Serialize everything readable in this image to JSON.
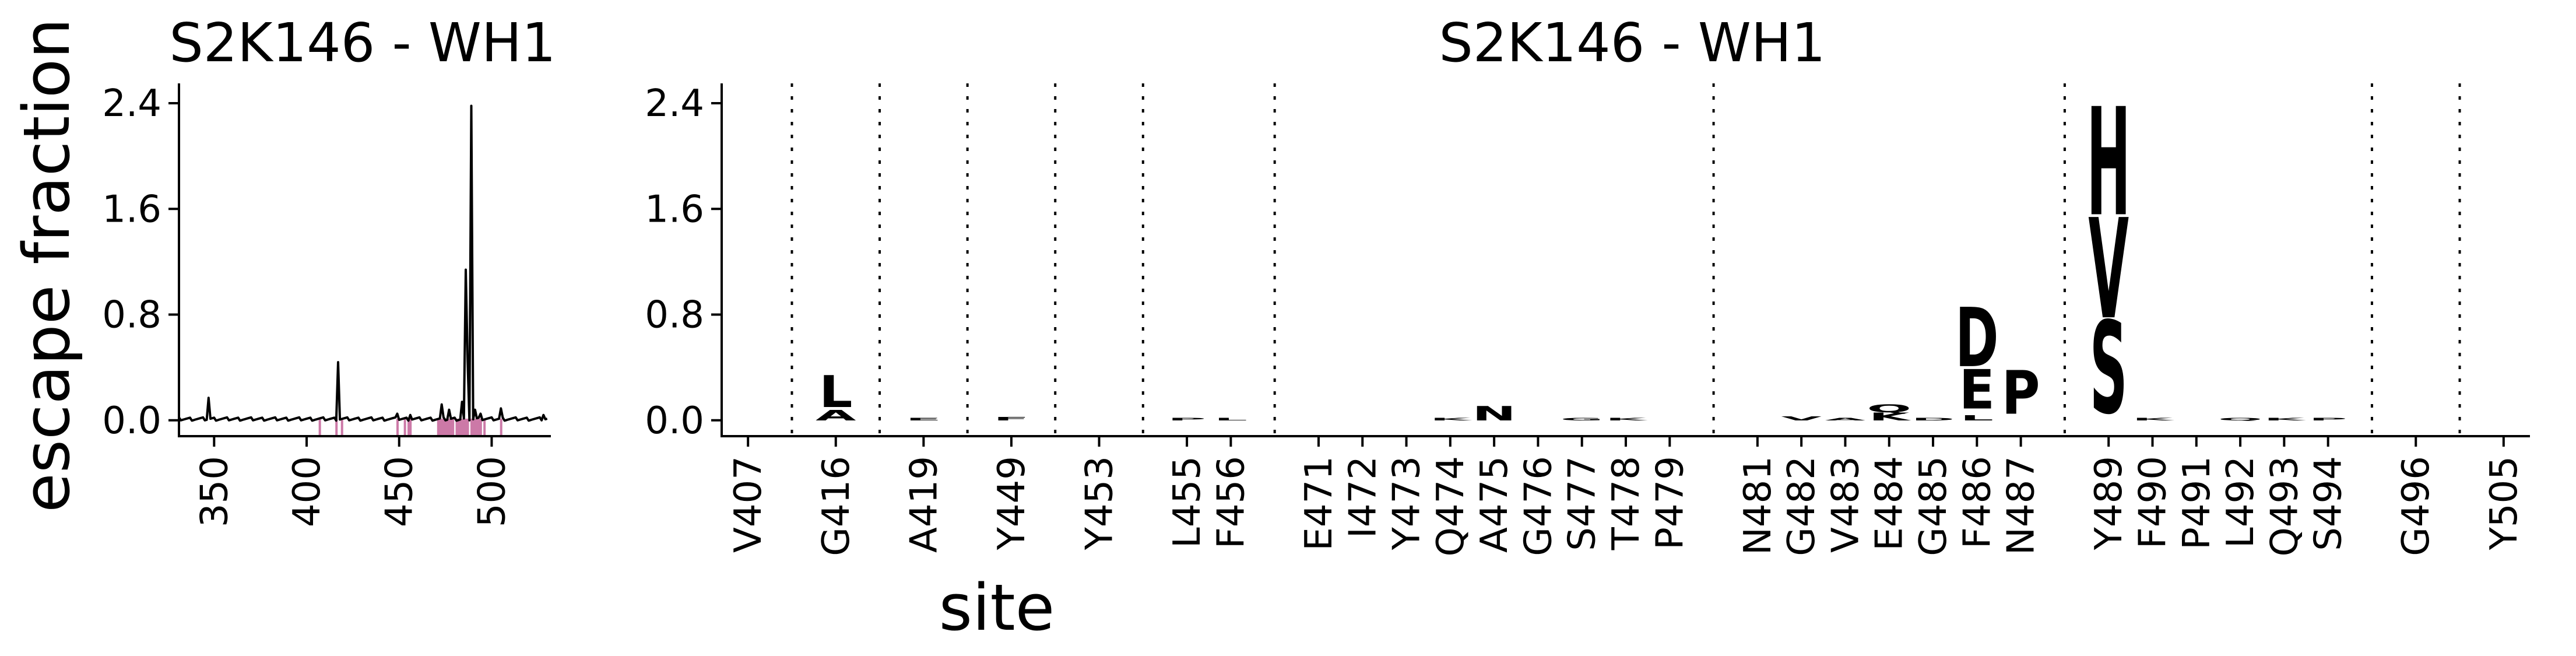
{
  "chart_data": [
    {
      "type": "line",
      "title": "S2K146 - WH1",
      "ylabel": "escape fraction",
      "xlabel": "",
      "xlim": [
        331,
        532
      ],
      "ylim": [
        -0.12,
        2.55
      ],
      "xticks": [
        350,
        400,
        450,
        500
      ],
      "yticks": [
        0.0,
        0.8,
        1.6,
        2.4
      ],
      "ytick_labels": [
        "0.0",
        "0.8",
        "1.6",
        "2.4"
      ],
      "baseline": 0.01,
      "spikes": [
        {
          "x": 347,
          "y": 0.17
        },
        {
          "x": 417,
          "y": 0.44
        },
        {
          "x": 449,
          "y": 0.05
        },
        {
          "x": 456,
          "y": 0.04
        },
        {
          "x": 473,
          "y": 0.12
        },
        {
          "x": 477,
          "y": 0.08
        },
        {
          "x": 484,
          "y": 0.14
        },
        {
          "x": 486,
          "y": 1.14
        },
        {
          "x": 487,
          "y": 0.44
        },
        {
          "x": 489,
          "y": 2.38
        },
        {
          "x": 491,
          "y": 0.08
        },
        {
          "x": 494,
          "y": 0.05
        },
        {
          "x": 505,
          "y": 0.09
        },
        {
          "x": 528,
          "y": 0.04
        }
      ],
      "highlight_color": "#cc79a7",
      "highlighted_sites": [
        407,
        416,
        419,
        449,
        453,
        455,
        456,
        471,
        472,
        473,
        474,
        475,
        476,
        477,
        478,
        479,
        481,
        482,
        483,
        484,
        485,
        486,
        487,
        489,
        490,
        491,
        492,
        493,
        494,
        496,
        505
      ]
    },
    {
      "type": "logo",
      "title": "S2K146 - WH1",
      "xlabel": "site",
      "ylim": [
        -0.12,
        2.55
      ],
      "yticks": [
        0.0,
        0.8,
        1.6,
        2.4
      ],
      "ytick_labels": [
        "0.0",
        "0.8",
        "1.6",
        "2.4"
      ],
      "sites": [
        "V407",
        "G416",
        "A419",
        "Y449",
        "Y453",
        "L455",
        "F456",
        "E471",
        "I472",
        "Y473",
        "Q474",
        "A475",
        "G476",
        "S477",
        "T478",
        "P479",
        "N481",
        "G482",
        "V483",
        "E484",
        "G485",
        "F486",
        "N487",
        "Y489",
        "F490",
        "P491",
        "L492",
        "Q493",
        "S494",
        "G496",
        "Y505"
      ],
      "separators_after": [
        "V407",
        "G416",
        "A419",
        "Y449",
        "Y453",
        "F456",
        "P479",
        "N487",
        "S494",
        "G496"
      ],
      "letters": [
        {
          "site": "G416",
          "letter": "L",
          "bottom": 0.1,
          "height": 0.24,
          "color": "#fbe8a6"
        },
        {
          "site": "G416",
          "letter": "A",
          "bottom": 0.0,
          "height": 0.08,
          "color": "#fbe8a6"
        },
        {
          "site": "A419",
          "letter": "E",
          "bottom": 0.0,
          "height": 0.02,
          "color": "#d9837a"
        },
        {
          "site": "Y449",
          "letter": "F",
          "bottom": 0.0,
          "height": 0.025,
          "color": "#fbe8a6"
        },
        {
          "site": "L455",
          "letter": "P",
          "bottom": 0.0,
          "height": 0.02,
          "color": "#e59a7e"
        },
        {
          "site": "F456",
          "letter": "L",
          "bottom": 0.0,
          "height": 0.02,
          "color": "#e59a7e"
        },
        {
          "site": "Q474",
          "letter": "K",
          "bottom": 0.0,
          "height": 0.02,
          "color": "#e59a7e"
        },
        {
          "site": "A475",
          "letter": "N",
          "bottom": 0.0,
          "height": 0.11,
          "color": "#fbe8a6"
        },
        {
          "site": "S477",
          "letter": "G",
          "bottom": 0.0,
          "height": 0.02,
          "color": "#d9837a"
        },
        {
          "site": "T478",
          "letter": "K",
          "bottom": 0.0,
          "height": 0.02,
          "color": "#d9837a"
        },
        {
          "site": "G482",
          "letter": "V",
          "bottom": 0.0,
          "height": 0.03,
          "color": "#c4554e"
        },
        {
          "site": "V483",
          "letter": "A",
          "bottom": 0.0,
          "height": 0.02,
          "color": "#e59a7e"
        },
        {
          "site": "E484",
          "letter": "K",
          "bottom": 0.0,
          "height": 0.06,
          "color": "#fbe8a6"
        },
        {
          "site": "E484",
          "letter": "Q",
          "bottom": 0.06,
          "height": 0.06,
          "color": "#f6c582"
        },
        {
          "site": "G485",
          "letter": "D",
          "bottom": 0.0,
          "height": 0.02,
          "color": "#e59a7e"
        },
        {
          "site": "F486",
          "letter": "D",
          "bottom": 0.41,
          "height": 0.45,
          "color": "#fbe8a6"
        },
        {
          "site": "F486",
          "letter": "E",
          "bottom": 0.09,
          "height": 0.3,
          "color": "#fbe8a6"
        },
        {
          "site": "F486",
          "letter": "L",
          "bottom": 0.0,
          "height": 0.04,
          "color": "#c4554e"
        },
        {
          "site": "N487",
          "letter": "P",
          "bottom": 0.05,
          "height": 0.33,
          "color": "#fbe8a6"
        },
        {
          "site": "Y489",
          "letter": "H",
          "bottom": 1.56,
          "height": 0.82,
          "color": "#f99a3a"
        },
        {
          "site": "Y489",
          "letter": "V",
          "bottom": 0.78,
          "height": 0.76,
          "color": "#fbe8a6"
        },
        {
          "site": "Y489",
          "letter": "S",
          "bottom": 0.06,
          "height": 0.7,
          "color": "#fbe8a6"
        },
        {
          "site": "F490",
          "letter": "K",
          "bottom": 0.0,
          "height": 0.02,
          "color": "#e59a7e"
        },
        {
          "site": "L492",
          "letter": "Q",
          "bottom": 0.0,
          "height": 0.02,
          "color": "#e59a7e"
        },
        {
          "site": "Q493",
          "letter": "K",
          "bottom": 0.0,
          "height": 0.02,
          "color": "#c4554e"
        },
        {
          "site": "S494",
          "letter": "P",
          "bottom": 0.0,
          "height": 0.02,
          "color": "#e59a7e"
        }
      ]
    }
  ]
}
